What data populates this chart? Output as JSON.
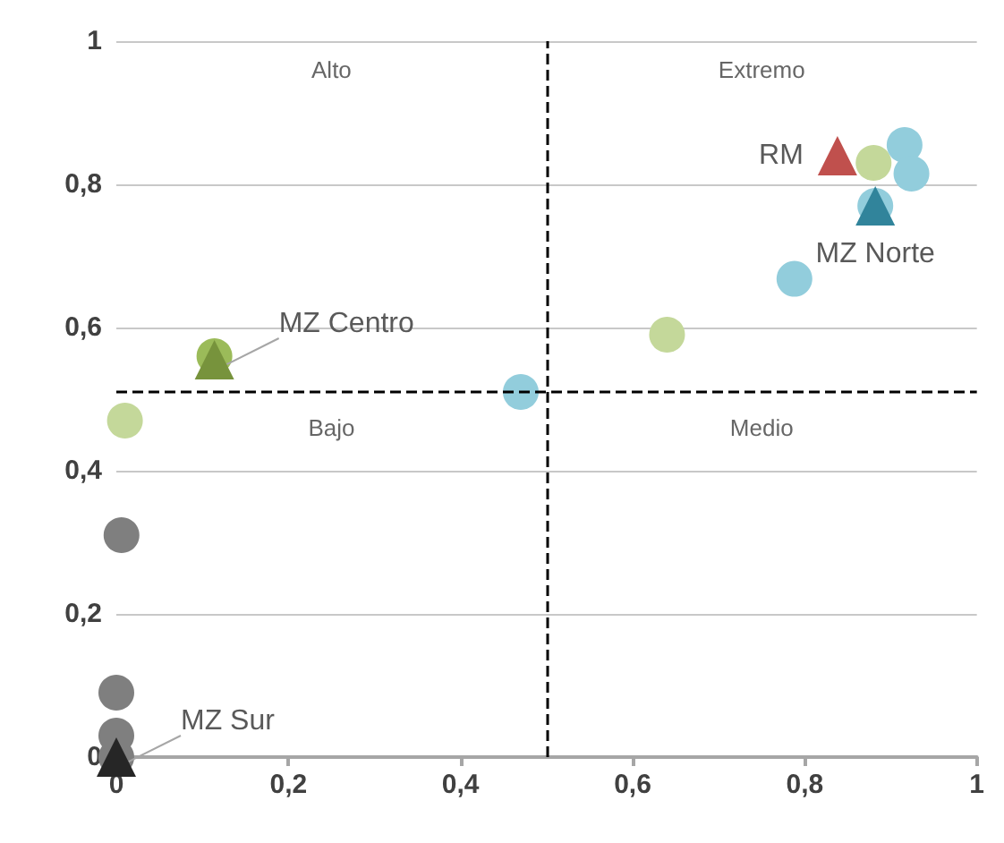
{
  "chart_data": {
    "type": "scatter",
    "xlim": [
      0,
      1
    ],
    "ylim": [
      0,
      1
    ],
    "xticks": [
      0,
      {
        "value": 0.2,
        "label": "0,2"
      },
      {
        "value": 0.4,
        "label": "0,4"
      },
      {
        "value": 0.6,
        "label": "0,6"
      },
      {
        "value": 0.8,
        "label": "0,8"
      },
      1
    ],
    "yticks": [
      0,
      {
        "value": 0.2,
        "label": "0,2"
      },
      {
        "value": 0.4,
        "label": "0,4"
      },
      {
        "value": 0.6,
        "label": "0,6"
      },
      {
        "value": 0.8,
        "label": "0,8"
      },
      1
    ],
    "grid": "y",
    "legend": false,
    "ref_lines": [
      {
        "axis": "x",
        "value": 0.5,
        "color": "#000000",
        "line_style": "dashed"
      },
      {
        "axis": "y",
        "value": 0.51,
        "color": "#000000",
        "line_style": "dashed"
      }
    ],
    "annotations": [
      "Alto",
      "Extremo",
      "Bajo",
      "Medio"
    ],
    "series": [
      {
        "color": "#7f7f7f",
        "marker": "circle",
        "x": [
          0,
          0,
          0,
          0.006
        ],
        "values": [
          0,
          0.03,
          0.09,
          0.31
        ]
      },
      {
        "color": "#c4d89a",
        "marker": "circle",
        "x": [
          0.01,
          0.64,
          0.88
        ],
        "values": [
          0.47,
          0.59,
          0.83
        ]
      },
      {
        "color": "#92cddc",
        "marker": "circle",
        "x": [
          0.47,
          0.788,
          0.882,
          0.916,
          0.924
        ],
        "values": [
          0.51,
          0.668,
          0.77,
          0.855,
          0.815
        ]
      },
      {
        "color": "#9bbb59",
        "marker": "circle",
        "x": [
          0.114
        ],
        "values": [
          0.56
        ]
      },
      {
        "name": "RM",
        "color": "#c0504d",
        "marker": "triangle",
        "x": [
          0.838
        ],
        "values": [
          0.84
        ]
      },
      {
        "name": "MZ Norte",
        "color": "#31849b",
        "marker": "triangle",
        "x": [
          0.882
        ],
        "values": [
          0.77
        ]
      },
      {
        "name": "MZ Centro",
        "color": "#77933c",
        "marker": "triangle",
        "x": [
          0.114
        ],
        "values": [
          0.555
        ]
      },
      {
        "name": "MZ Sur",
        "color": "#262626",
        "marker": "triangle",
        "x": [
          0
        ],
        "values": [
          0
        ]
      }
    ]
  }
}
